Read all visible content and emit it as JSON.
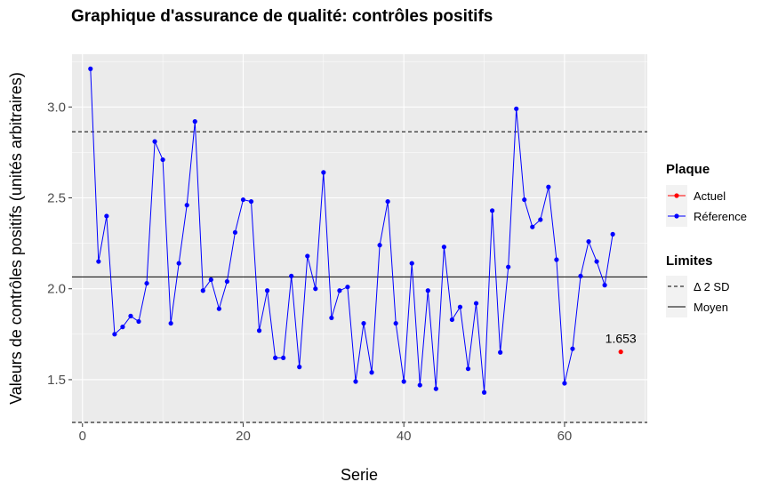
{
  "chart_data": {
    "type": "line",
    "title": "Graphique d'assurance de qualité: contrôles positifs",
    "xlabel": "Serie",
    "ylabel": "Valeurs de contrôles positifs (unités arbitraires)",
    "xlim": [
      -1.3,
      70.3
    ],
    "ylim": [
      1.26,
      3.29
    ],
    "xticks": [
      0,
      20,
      40,
      60
    ],
    "xtick_labels": [
      "0",
      "20",
      "40",
      "60"
    ],
    "yticks": [
      1.5,
      2.0,
      2.5,
      3.0
    ],
    "ytick_labels": [
      "1.5",
      "2.0",
      "2.5",
      "3.0"
    ],
    "grid": true,
    "legend_position": "right",
    "series": [
      {
        "name": "Réference",
        "color": "#0000ff",
        "x": [
          1,
          2,
          3,
          4,
          5,
          6,
          7,
          8,
          9,
          10,
          11,
          12,
          13,
          14,
          15,
          16,
          17,
          18,
          19,
          20,
          21,
          22,
          23,
          24,
          25,
          26,
          27,
          28,
          29,
          30,
          31,
          32,
          33,
          34,
          35,
          36,
          37,
          38,
          39,
          40,
          41,
          42,
          43,
          44,
          45,
          46,
          47,
          48,
          49,
          50,
          51,
          52,
          53,
          54,
          55,
          56,
          57,
          58,
          59,
          60,
          61,
          62,
          63,
          64,
          65,
          66
        ],
        "values": [
          3.21,
          2.15,
          2.4,
          1.75,
          1.79,
          1.85,
          1.82,
          2.03,
          2.81,
          2.71,
          1.81,
          2.14,
          2.46,
          2.92,
          1.99,
          2.05,
          1.89,
          2.04,
          2.31,
          2.49,
          2.48,
          1.77,
          1.99,
          1.62,
          1.62,
          2.07,
          1.57,
          2.18,
          2.0,
          2.64,
          1.84,
          1.99,
          2.01,
          1.49,
          1.81,
          1.54,
          2.24,
          2.48,
          1.81,
          1.49,
          2.14,
          1.47,
          1.99,
          1.45,
          2.23,
          1.83,
          1.9,
          1.56,
          1.92,
          1.43,
          2.43,
          1.65,
          2.12,
          2.99,
          2.49,
          2.34,
          2.38,
          2.56,
          2.16,
          1.48,
          1.67,
          2.07,
          2.26,
          2.15,
          2.02,
          2.3
        ]
      },
      {
        "name": "Actuel",
        "color": "#ff0000",
        "x": [
          67
        ],
        "values": [
          1.653
        ]
      }
    ],
    "reference_lines": {
      "mean": 2.065,
      "upper_2sd": 2.864,
      "lower_2sd": 1.265
    },
    "annotations": [
      {
        "x": 67,
        "y": 1.653,
        "text": "1.653"
      }
    ],
    "legend": {
      "plaque_title": "Plaque",
      "plaque_items": [
        {
          "label": "Actuel",
          "color": "#ff0000"
        },
        {
          "label": "Réference",
          "color": "#0000ff"
        }
      ],
      "limites_title": "Limites",
      "limites_items": [
        {
          "label": "Δ 2 SD",
          "style": "dashed"
        },
        {
          "label": "Moyen",
          "style": "solid"
        }
      ]
    },
    "colors": {
      "panel_background": "#ebebeb",
      "grid": "#ffffff",
      "reference_line": "#000000"
    }
  }
}
